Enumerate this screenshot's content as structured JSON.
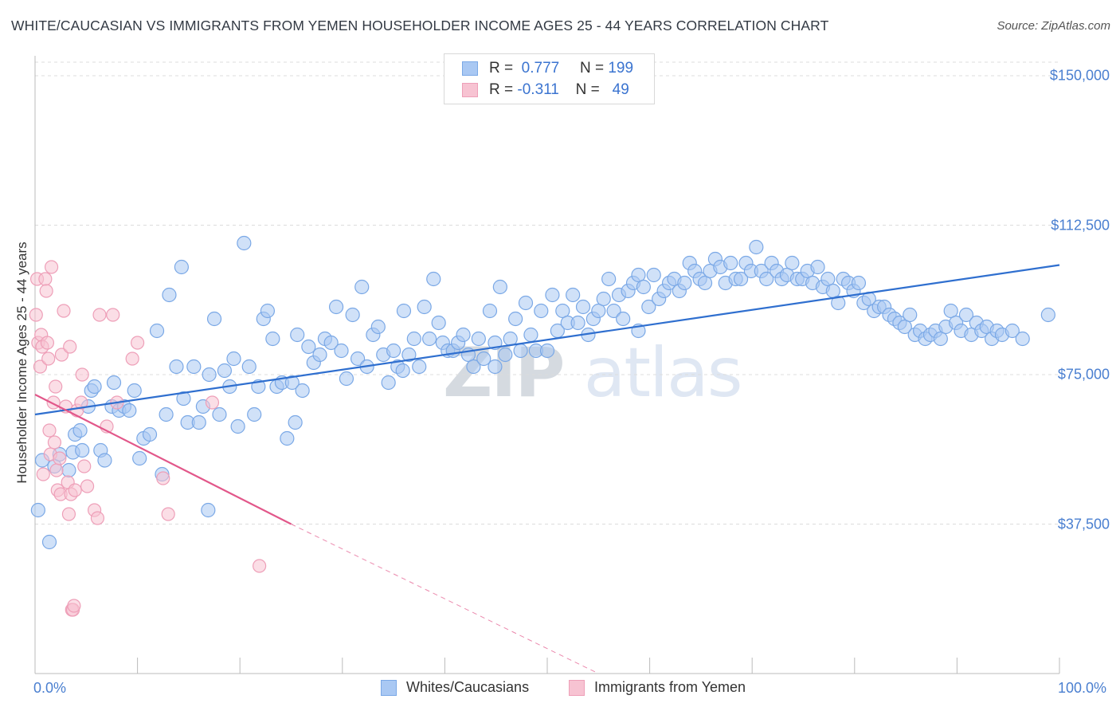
{
  "header": {
    "title": "WHITE/CAUCASIAN VS IMMIGRANTS FROM YEMEN HOUSEHOLDER INCOME AGES 25 - 44 YEARS CORRELATION CHART",
    "source": "Source: ZipAtlas.com"
  },
  "watermark": {
    "zip": "ZIP",
    "atlas": "atlas"
  },
  "legend": {
    "rows": [
      {
        "r_label": "R =",
        "r_value": "0.777",
        "n_label": "N =",
        "n_value": "199",
        "color": "#a9c8f3"
      },
      {
        "r_label": "R =",
        "r_value": "-0.311",
        "n_label": "N =",
        "n_value": "49",
        "color": "#f7bfd0"
      }
    ]
  },
  "bottom_legend": {
    "whites": "Whites/Caucasians",
    "yemen": "Immigrants from Yemen"
  },
  "colors": {
    "blue_fill": "#a9c8f3",
    "blue_stroke": "#7aa8e6",
    "blue_line": "#2f6fcf",
    "pink_fill": "#f7c3d2",
    "pink_stroke": "#ee9fb8",
    "pink_line": "#e2578a",
    "grid": "#dcdcdc",
    "tick_text": "#4a7fd0"
  },
  "chart_data": {
    "type": "scatter",
    "title": "WHITE/CAUCASIAN VS IMMIGRANTS FROM YEMEN HOUSEHOLDER INCOME AGES 25 - 44 YEARS CORRELATION CHART",
    "xlabel": "",
    "ylabel": "Householder Income Ages 25 - 44 years",
    "xlim": [
      0,
      100
    ],
    "ylim": [
      0,
      155000
    ],
    "x_tick_labels": [
      "0.0%",
      "100.0%"
    ],
    "y_ticks": [
      37500,
      75000,
      112500,
      150000
    ],
    "y_tick_labels": [
      "$37,500",
      "$75,000",
      "$112,500",
      "$150,000"
    ],
    "grid": true,
    "legend_position": "top-center",
    "series": [
      {
        "name": "Whites/Caucasians",
        "r": 0.777,
        "n": 199,
        "trend": {
          "x": [
            0,
            100
          ],
          "y": [
            65000,
            102500
          ]
        },
        "points": [
          [
            0.3,
            41000
          ],
          [
            0.7,
            53500
          ],
          [
            1.4,
            33000
          ],
          [
            1.9,
            52000
          ],
          [
            2.4,
            55000
          ],
          [
            3.3,
            51000
          ],
          [
            3.7,
            55500
          ],
          [
            3.9,
            60000
          ],
          [
            4.4,
            61000
          ],
          [
            4.6,
            56000
          ],
          [
            5.2,
            67000
          ],
          [
            5.5,
            71000
          ],
          [
            5.8,
            72000
          ],
          [
            6.4,
            56000
          ],
          [
            6.8,
            53500
          ],
          [
            7.5,
            67000
          ],
          [
            7.7,
            73000
          ],
          [
            8.2,
            66000
          ],
          [
            8.7,
            67000
          ],
          [
            9.2,
            66000
          ],
          [
            9.7,
            71000
          ],
          [
            10.2,
            54000
          ],
          [
            10.6,
            59000
          ],
          [
            11.2,
            60000
          ],
          [
            11.9,
            86000
          ],
          [
            12.4,
            50000
          ],
          [
            12.8,
            65000
          ],
          [
            13.1,
            95000
          ],
          [
            13.8,
            77000
          ],
          [
            14.3,
            102000
          ],
          [
            14.5,
            69000
          ],
          [
            14.9,
            63000
          ],
          [
            15.5,
            77000
          ],
          [
            16.0,
            63000
          ],
          [
            16.4,
            67000
          ],
          [
            17.0,
            75000
          ],
          [
            17.5,
            89000
          ],
          [
            18.0,
            65000
          ],
          [
            18.5,
            76000
          ],
          [
            19.0,
            72000
          ],
          [
            19.4,
            79000
          ],
          [
            19.8,
            62000
          ],
          [
            20.4,
            108000
          ],
          [
            20.9,
            77000
          ],
          [
            21.4,
            65000
          ],
          [
            21.8,
            72000
          ],
          [
            22.3,
            89000
          ],
          [
            22.7,
            91000
          ],
          [
            23.2,
            84000
          ],
          [
            23.6,
            72000
          ],
          [
            24.1,
            73000
          ],
          [
            24.6,
            59000
          ],
          [
            25.1,
            73000
          ],
          [
            25.6,
            85000
          ],
          [
            26.1,
            71000
          ],
          [
            26.7,
            82000
          ],
          [
            27.2,
            78000
          ],
          [
            27.8,
            80000
          ],
          [
            28.3,
            84000
          ],
          [
            28.9,
            83000
          ],
          [
            29.4,
            92000
          ],
          [
            29.9,
            81000
          ],
          [
            30.4,
            74000
          ],
          [
            31.0,
            90000
          ],
          [
            31.5,
            79000
          ],
          [
            31.9,
            97000
          ],
          [
            32.4,
            77000
          ],
          [
            33.0,
            85000
          ],
          [
            33.5,
            87000
          ],
          [
            34.0,
            80000
          ],
          [
            34.5,
            73000
          ],
          [
            35.0,
            81000
          ],
          [
            35.4,
            77000
          ],
          [
            36.0,
            91000
          ],
          [
            36.5,
            80000
          ],
          [
            37.0,
            84000
          ],
          [
            37.5,
            77000
          ],
          [
            38.0,
            92000
          ],
          [
            38.5,
            84000
          ],
          [
            38.9,
            99000
          ],
          [
            39.4,
            88000
          ],
          [
            39.8,
            83000
          ],
          [
            40.3,
            81000
          ],
          [
            40.8,
            81000
          ],
          [
            41.3,
            83000
          ],
          [
            41.8,
            85000
          ],
          [
            42.3,
            80000
          ],
          [
            42.8,
            77000
          ],
          [
            43.3,
            84000
          ],
          [
            43.8,
            79000
          ],
          [
            44.4,
            91000
          ],
          [
            44.9,
            83000
          ],
          [
            45.4,
            97000
          ],
          [
            45.9,
            80000
          ],
          [
            46.4,
            84000
          ],
          [
            46.9,
            89000
          ],
          [
            47.4,
            81000
          ],
          [
            47.9,
            93000
          ],
          [
            48.4,
            85000
          ],
          [
            48.9,
            81000
          ],
          [
            49.4,
            91000
          ],
          [
            50.0,
            81000
          ],
          [
            50.5,
            95000
          ],
          [
            51.0,
            86000
          ],
          [
            51.5,
            91000
          ],
          [
            52.0,
            88000
          ],
          [
            52.5,
            95000
          ],
          [
            53.0,
            88000
          ],
          [
            53.5,
            92000
          ],
          [
            54.0,
            85000
          ],
          [
            54.5,
            89000
          ],
          [
            55.0,
            91000
          ],
          [
            55.5,
            94000
          ],
          [
            56.0,
            99000
          ],
          [
            56.5,
            91000
          ],
          [
            57.0,
            95000
          ],
          [
            57.4,
            89000
          ],
          [
            57.9,
            96000
          ],
          [
            58.4,
            98000
          ],
          [
            58.9,
            100000
          ],
          [
            59.4,
            97000
          ],
          [
            59.9,
            92000
          ],
          [
            60.4,
            100000
          ],
          [
            60.9,
            94000
          ],
          [
            61.4,
            96000
          ],
          [
            61.9,
            98000
          ],
          [
            62.4,
            99000
          ],
          [
            62.9,
            96000
          ],
          [
            63.4,
            98000
          ],
          [
            63.9,
            103000
          ],
          [
            64.4,
            101000
          ],
          [
            64.9,
            99000
          ],
          [
            65.4,
            98000
          ],
          [
            65.9,
            101000
          ],
          [
            66.4,
            104000
          ],
          [
            66.9,
            102000
          ],
          [
            67.4,
            98000
          ],
          [
            67.9,
            103000
          ],
          [
            68.4,
            99000
          ],
          [
            68.9,
            99000
          ],
          [
            69.4,
            103000
          ],
          [
            69.9,
            101000
          ],
          [
            70.4,
            107000
          ],
          [
            70.9,
            101000
          ],
          [
            71.4,
            99000
          ],
          [
            71.9,
            103000
          ],
          [
            72.4,
            101000
          ],
          [
            72.9,
            99000
          ],
          [
            73.4,
            100000
          ],
          [
            73.9,
            103000
          ],
          [
            74.4,
            99000
          ],
          [
            74.9,
            99000
          ],
          [
            75.4,
            101000
          ],
          [
            75.9,
            98000
          ],
          [
            76.4,
            102000
          ],
          [
            76.9,
            97000
          ],
          [
            77.4,
            99000
          ],
          [
            77.9,
            96000
          ],
          [
            78.4,
            93000
          ],
          [
            78.9,
            99000
          ],
          [
            79.4,
            98000
          ],
          [
            79.9,
            96000
          ],
          [
            80.4,
            98000
          ],
          [
            80.9,
            93000
          ],
          [
            81.4,
            94000
          ],
          [
            81.9,
            91000
          ],
          [
            82.4,
            92000
          ],
          [
            82.9,
            92000
          ],
          [
            83.4,
            90000
          ],
          [
            83.9,
            89000
          ],
          [
            84.4,
            88000
          ],
          [
            84.9,
            87000
          ],
          [
            85.4,
            90000
          ],
          [
            85.9,
            85000
          ],
          [
            86.4,
            86000
          ],
          [
            86.9,
            84000
          ],
          [
            87.4,
            85000
          ],
          [
            87.9,
            86000
          ],
          [
            88.4,
            84000
          ],
          [
            88.9,
            87000
          ],
          [
            89.4,
            91000
          ],
          [
            89.9,
            88000
          ],
          [
            90.4,
            86000
          ],
          [
            90.9,
            90000
          ],
          [
            91.4,
            85000
          ],
          [
            91.9,
            88000
          ],
          [
            92.4,
            86000
          ],
          [
            92.9,
            87000
          ],
          [
            93.4,
            84000
          ],
          [
            93.9,
            86000
          ],
          [
            94.4,
            85000
          ],
          [
            95.4,
            86000
          ],
          [
            96.4,
            84000
          ],
          [
            98.9,
            90000
          ],
          [
            16.9,
            41000
          ],
          [
            25.4,
            63000
          ],
          [
            35.9,
            76000
          ],
          [
            44.9,
            77000
          ],
          [
            58.9,
            86000
          ]
        ]
      },
      {
        "name": "Immigrants from Yemen",
        "r": -0.311,
        "n": 49,
        "trend": {
          "x": [
            0,
            25
          ],
          "y": [
            70000,
            37500
          ],
          "dashed_to": [
            55,
            0
          ]
        },
        "points": [
          [
            0.1,
            90000
          ],
          [
            0.2,
            99000
          ],
          [
            0.3,
            83000
          ],
          [
            0.5,
            77000
          ],
          [
            0.6,
            85000
          ],
          [
            0.7,
            82000
          ],
          [
            0.8,
            50000
          ],
          [
            1.0,
            99000
          ],
          [
            1.1,
            96000
          ],
          [
            1.2,
            83000
          ],
          [
            1.3,
            79000
          ],
          [
            1.4,
            61000
          ],
          [
            1.5,
            55000
          ],
          [
            1.6,
            102000
          ],
          [
            1.8,
            68000
          ],
          [
            1.9,
            58000
          ],
          [
            2.0,
            72000
          ],
          [
            2.1,
            51000
          ],
          [
            2.2,
            46000
          ],
          [
            2.4,
            54000
          ],
          [
            2.5,
            45000
          ],
          [
            2.6,
            80000
          ],
          [
            2.8,
            91000
          ],
          [
            3.0,
            67000
          ],
          [
            3.2,
            48000
          ],
          [
            3.3,
            40000
          ],
          [
            3.4,
            82000
          ],
          [
            3.5,
            45000
          ],
          [
            3.6,
            16000
          ],
          [
            3.7,
            16000
          ],
          [
            3.8,
            17000
          ],
          [
            3.9,
            46000
          ],
          [
            4.1,
            66000
          ],
          [
            4.5,
            68000
          ],
          [
            4.6,
            75000
          ],
          [
            4.8,
            52000
          ],
          [
            5.1,
            47000
          ],
          [
            5.8,
            41000
          ],
          [
            6.1,
            39000
          ],
          [
            6.3,
            90000
          ],
          [
            7.0,
            62000
          ],
          [
            7.6,
            90000
          ],
          [
            8.0,
            68000
          ],
          [
            9.5,
            79000
          ],
          [
            10.0,
            83000
          ],
          [
            12.5,
            49000
          ],
          [
            13.0,
            40000
          ],
          [
            17.3,
            68000
          ],
          [
            21.9,
            27000
          ]
        ]
      }
    ]
  }
}
